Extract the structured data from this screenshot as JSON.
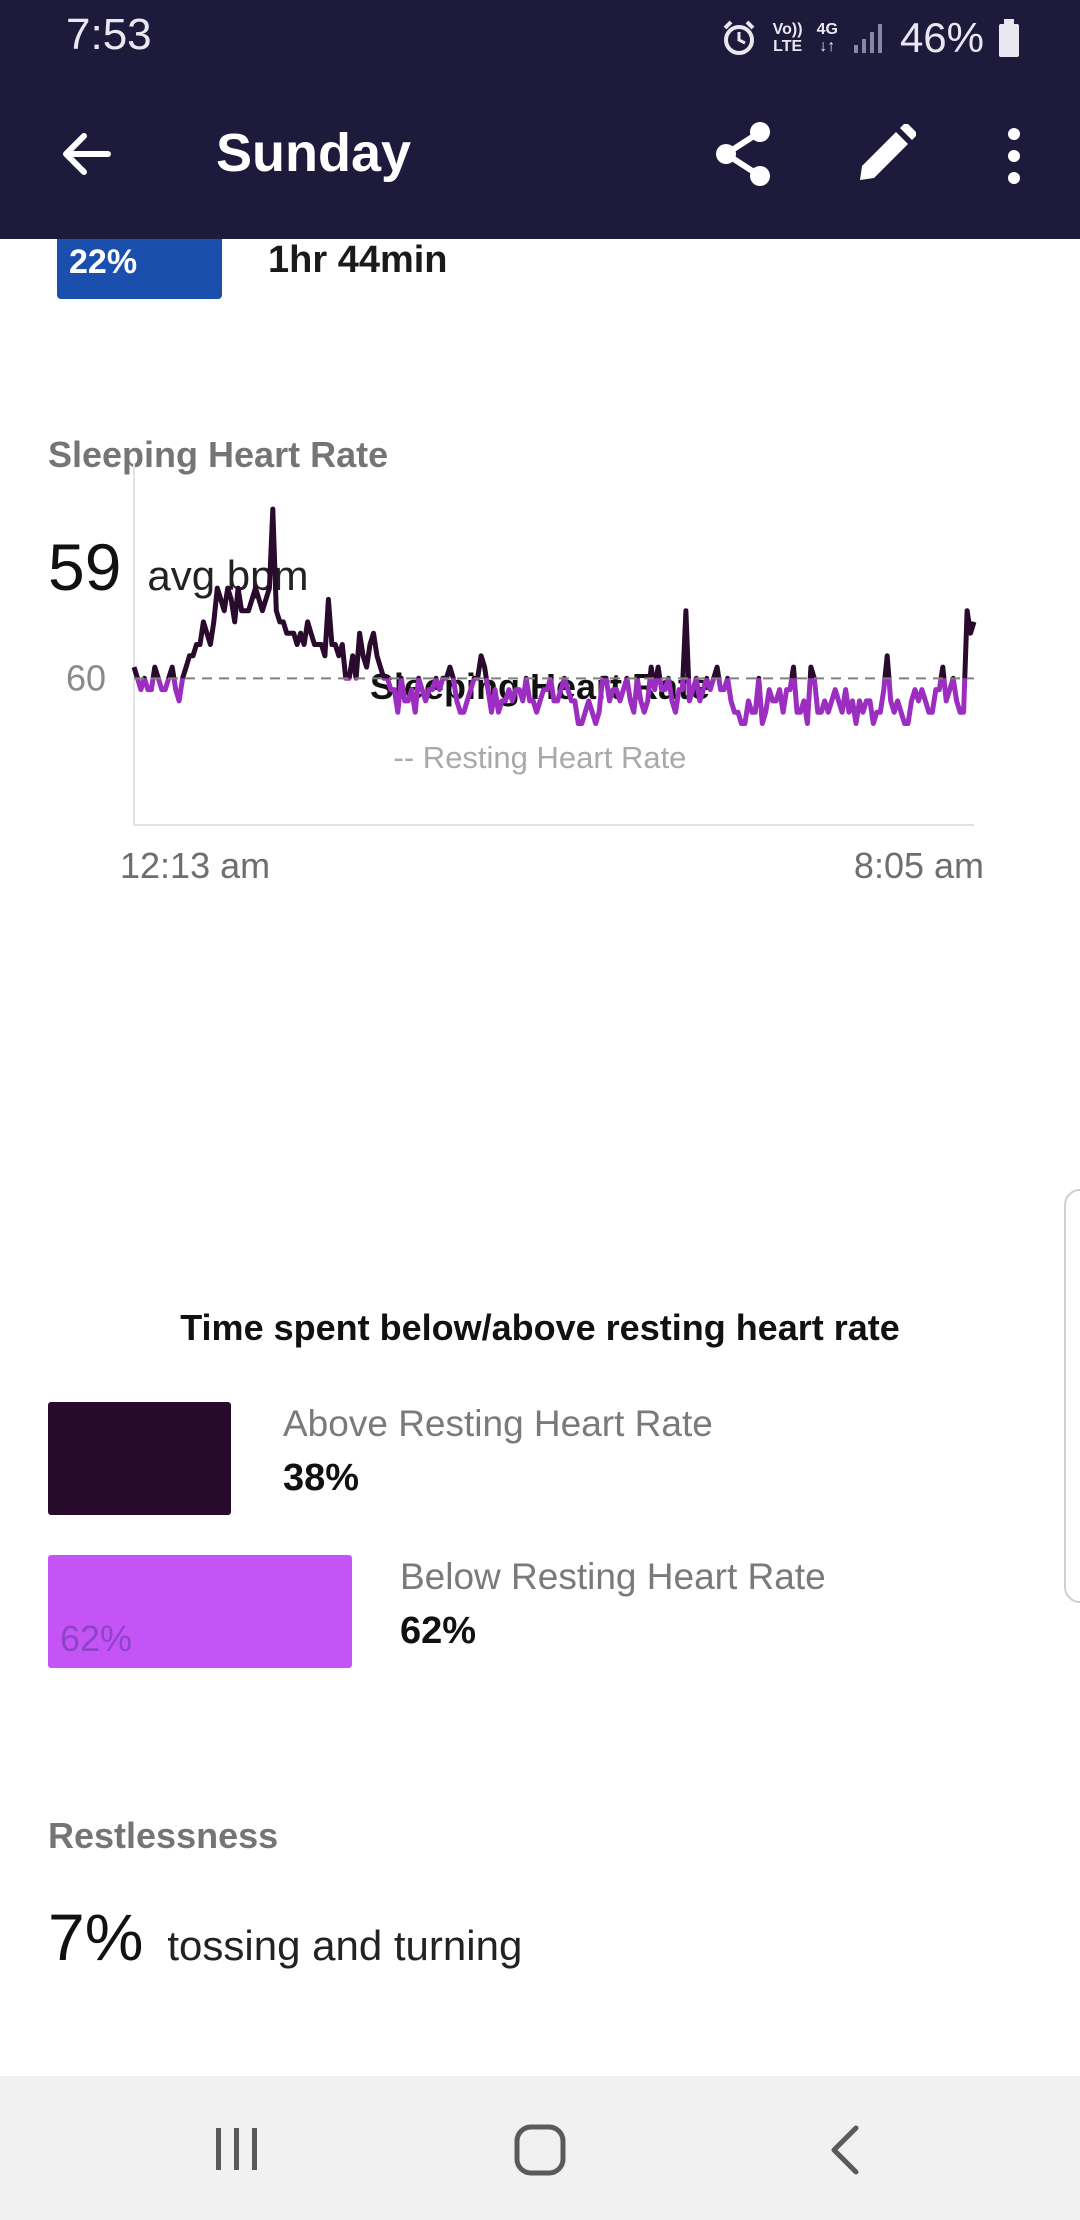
{
  "status_bar": {
    "time": "7:53",
    "volte_top": "Vo))",
    "volte_bottom": "LTE",
    "network_top": "4G",
    "network_bottom": "↓↑",
    "battery_percent": "46%",
    "icons": [
      "alarm-icon",
      "volte-icon",
      "network-4g-icon",
      "signal-icon",
      "battery-icon"
    ]
  },
  "app_bar": {
    "title": "Sunday",
    "icons": [
      "back-arrow-icon",
      "share-icon",
      "edit-pencil-icon",
      "more-vertical-icon"
    ]
  },
  "sleep_stage": {
    "percent": "22%",
    "duration": "1hr 44min",
    "color": "#1a4fae"
  },
  "sleeping_heart_rate": {
    "section_label": "Sleeping Heart Rate",
    "value": "59",
    "unit": "avg bpm"
  },
  "chart_data": {
    "type": "line",
    "title": "Sleeping Heart Rate",
    "legend": "-- Resting Heart Rate",
    "x_labels": [
      "12:13 am",
      "8:05 am"
    ],
    "y_tick_labels": [
      "60"
    ],
    "resting_heart_rate": 60,
    "ylim": [
      47,
      79
    ],
    "grid": false,
    "colors": {
      "above": "#2a0b2e",
      "below": "#9b2dc0",
      "reference": "#808080"
    },
    "series": [
      {
        "values": [
          61,
          60,
          59,
          60,
          59,
          59,
          61,
          60,
          59,
          59,
          60,
          61,
          59,
          58,
          60,
          61,
          62,
          62,
          63,
          63,
          65,
          64,
          63,
          65,
          68,
          67,
          66,
          68,
          67,
          65,
          68,
          66,
          66,
          66,
          67,
          68,
          67,
          66,
          67,
          68,
          75,
          66,
          65,
          65,
          64,
          64,
          64,
          63,
          64,
          63,
          65,
          64,
          63,
          63,
          63,
          62,
          67,
          63,
          63,
          62,
          63,
          60,
          60,
          62,
          60,
          64,
          62,
          61,
          63,
          64,
          62,
          61,
          60,
          60,
          59,
          59,
          57,
          60,
          58,
          58,
          59,
          57,
          60,
          59,
          58,
          59,
          59,
          60,
          59,
          60,
          60,
          61,
          60,
          58,
          57,
          57,
          58,
          59,
          60,
          60,
          62,
          61,
          59,
          57,
          59,
          57,
          58,
          58,
          59,
          58,
          59,
          59,
          58,
          60,
          58,
          58,
          57,
          58,
          59,
          59,
          60,
          58,
          58,
          59,
          60,
          59,
          58,
          58,
          56,
          56,
          57,
          58,
          57,
          56,
          57,
          60,
          60,
          58,
          59,
          59,
          58,
          59,
          60,
          58,
          57,
          60,
          58,
          57,
          58,
          61,
          59,
          61,
          59,
          59,
          60,
          58,
          57,
          59,
          59,
          66,
          58,
          59,
          60,
          58,
          59,
          60,
          59,
          60,
          61,
          59,
          59,
          60,
          58,
          57,
          57,
          56,
          56,
          58,
          57,
          57,
          60,
          56,
          57,
          59,
          58,
          58,
          59,
          57,
          59,
          59,
          61,
          57,
          57,
          58,
          56,
          61,
          60,
          57,
          57,
          58,
          57,
          58,
          59,
          58,
          57,
          59,
          57,
          58,
          56,
          58,
          57,
          58,
          58,
          56,
          57,
          57,
          59,
          62,
          58,
          57,
          58,
          57,
          56,
          56,
          58,
          59,
          58,
          59,
          58,
          57,
          57,
          59,
          59,
          61,
          58,
          59,
          60,
          58,
          57,
          57,
          66,
          64,
          65
        ]
      }
    ]
  },
  "time_split": {
    "title": "Time spent below/above resting heart rate",
    "above": {
      "label": "Above Resting Heart Rate",
      "value": "38%",
      "fraction": 0.38,
      "color": "#280a2c"
    },
    "below": {
      "label": "Below Resting Heart Rate",
      "value": "62%",
      "bar_text": "62%",
      "fraction": 0.62,
      "color": "#c454f5"
    }
  },
  "restlessness": {
    "section_label": "Restlessness",
    "value": "7%",
    "description": "tossing and turning"
  },
  "nav_bar": {
    "icons": [
      "recent-apps-icon",
      "home-icon",
      "back-icon"
    ]
  }
}
